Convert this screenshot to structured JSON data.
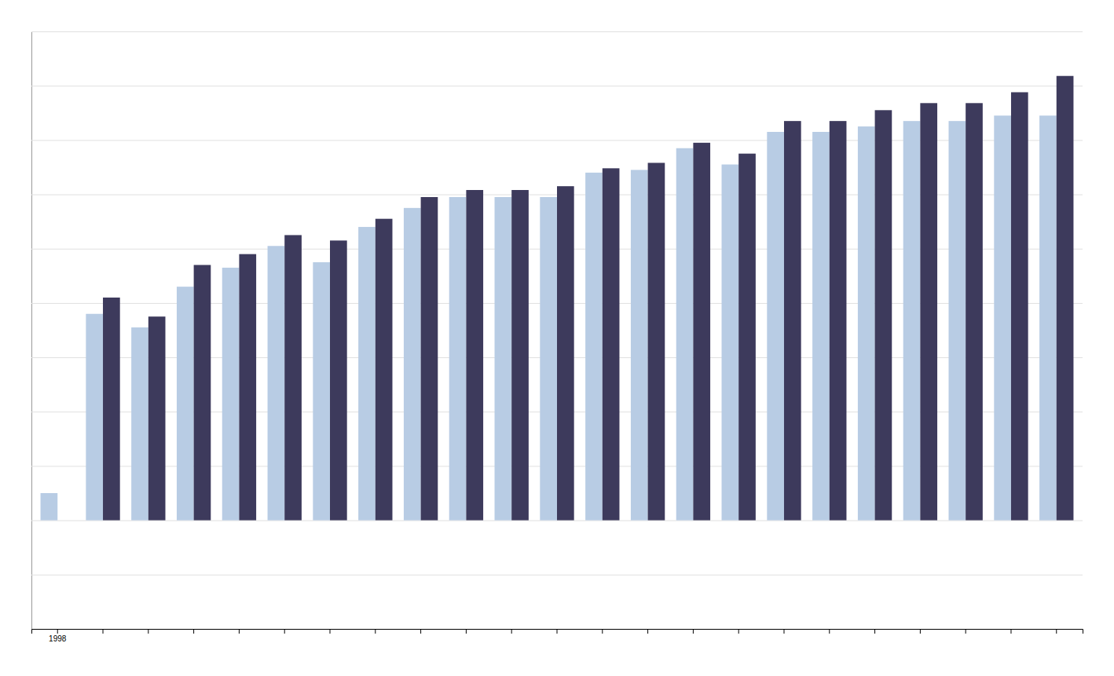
{
  "chart_data": {
    "type": "bar",
    "categories": [
      "1998",
      null,
      null,
      null,
      null,
      null,
      null,
      null,
      null,
      null,
      null,
      null,
      null,
      null,
      null,
      null,
      null,
      null,
      null,
      null,
      null,
      null,
      null
    ],
    "series": [
      {
        "color": "#b8cce4",
        "values": [
          50,
          380,
          355,
          430,
          465,
          505,
          475,
          540,
          575,
          595,
          595,
          595,
          640,
          645,
          685,
          655,
          715,
          715,
          725,
          735,
          735,
          745,
          745
        ]
      },
      {
        "color": "#3d3a5c",
        "values": [
          null,
          410,
          375,
          470,
          490,
          525,
          515,
          555,
          595,
          608,
          608,
          615,
          648,
          658,
          695,
          675,
          735,
          735,
          755,
          768,
          768,
          788,
          818
        ]
      }
    ],
    "ylim": [
      -200,
      900
    ],
    "yticks": [
      -200,
      -100,
      0,
      100,
      200,
      300,
      400,
      500,
      600,
      700,
      800,
      900
    ],
    "grid": true,
    "tick_labels": "x"
  }
}
